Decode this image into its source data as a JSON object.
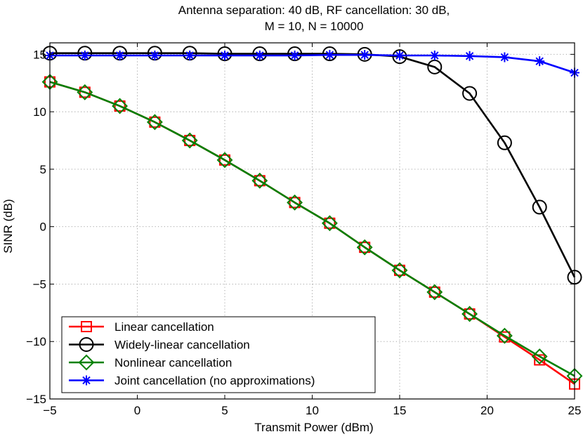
{
  "chart_data": {
    "type": "line",
    "title": [
      "Antenna separation: 40 dB, RF cancellation: 30 dB,",
      "M = 10, N = 10000"
    ],
    "xlabel": "Transmit Power (dBm)",
    "ylabel": "SINR (dB)",
    "xlim": [
      -5,
      25
    ],
    "ylim": [
      -15,
      16
    ],
    "xticks": [
      -5,
      0,
      5,
      10,
      15,
      20,
      25
    ],
    "yticks": [
      -15,
      -10,
      -5,
      0,
      5,
      10,
      15
    ],
    "grid": true,
    "legend_position": "bottom-left",
    "x": [
      -5,
      -3,
      -1,
      1,
      3,
      5,
      7,
      9,
      11,
      13,
      15,
      17,
      19,
      21,
      23,
      25
    ],
    "series": [
      {
        "name": "Linear cancellation",
        "color": "#ff0000",
        "marker": "square",
        "values": [
          12.6,
          11.7,
          10.5,
          9.1,
          7.5,
          5.8,
          4.0,
          2.1,
          0.3,
          -1.8,
          -3.8,
          -5.7,
          -7.6,
          -9.6,
          -11.6,
          -13.7
        ]
      },
      {
        "name": "Widely-linear cancellation",
        "color": "#000000",
        "marker": "circle",
        "values": [
          15.1,
          15.1,
          15.1,
          15.1,
          15.1,
          15.05,
          15.05,
          15.05,
          15.05,
          15.0,
          14.8,
          13.9,
          11.6,
          7.3,
          1.7,
          -4.4
        ]
      },
      {
        "name": "Nonlinear cancellation",
        "color": "#008000",
        "marker": "diamond",
        "values": [
          12.6,
          11.7,
          10.5,
          9.1,
          7.5,
          5.8,
          4.0,
          2.1,
          0.3,
          -1.8,
          -3.8,
          -5.7,
          -7.6,
          -9.5,
          -11.3,
          -13.0
        ]
      },
      {
        "name": "Joint cancellation (no approximations)",
        "color": "#0000ff",
        "marker": "star",
        "values": [
          14.9,
          14.9,
          14.9,
          14.9,
          14.9,
          14.9,
          14.9,
          14.9,
          14.95,
          14.95,
          14.9,
          14.9,
          14.85,
          14.75,
          14.4,
          13.4
        ]
      }
    ]
  }
}
